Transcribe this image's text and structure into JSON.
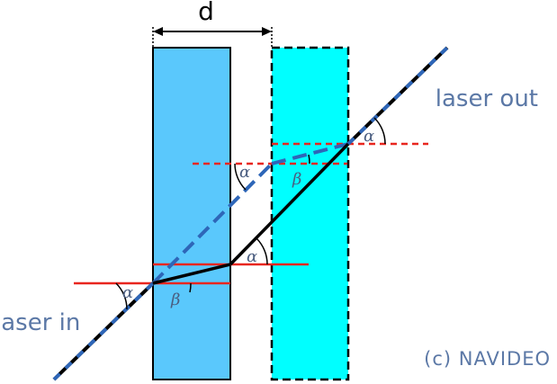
{
  "labels": {
    "distance": "d",
    "laser_in": "laser in",
    "laser_out": "laser out",
    "copyright": "(c) NAVIDEO"
  },
  "angles": {
    "alpha": "α",
    "beta": "β"
  },
  "colors": {
    "slab_left": "#5ac8fc",
    "slab_right": "#00ffff",
    "normal_line": "#e8261f",
    "beam_dashed": "#2e66b8",
    "beam_solid": "#000000",
    "text": "#5b78a6"
  }
}
